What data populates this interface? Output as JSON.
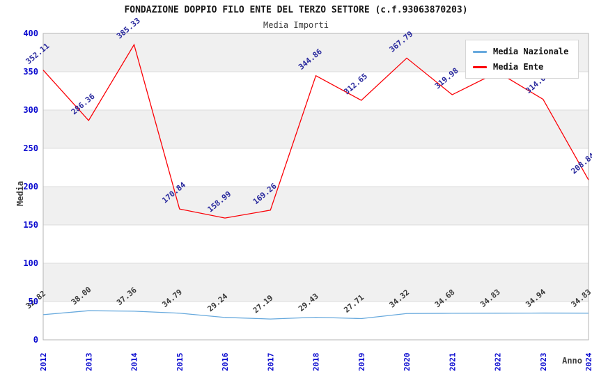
{
  "title": "FONDAZIONE DOPPIO FILO ENTE DEL TERZO SETTORE (c.f.93063870203)",
  "subtitle": "Media Importi",
  "legend": {
    "items": [
      {
        "label": "Media Nazionale",
        "color": "#67a9dd"
      },
      {
        "label": "Media Ente",
        "color": "#fb0006"
      }
    ]
  },
  "chart_data": {
    "type": "line",
    "title": "FONDAZIONE DOPPIO FILO ENTE DEL TERZO SETTORE (c.f.93063870203)",
    "subtitle": "Media Importi",
    "x": [
      2012,
      2013,
      2014,
      2015,
      2016,
      2017,
      2018,
      2019,
      2020,
      2021,
      2022,
      2023,
      2024
    ],
    "xlabel": "Anno",
    "ylabel": "Media",
    "ylim": [
      0,
      400
    ],
    "ytick_step": 50,
    "grid": "horizontal gridlines every 50 with alternating white/gray bands",
    "legend_position": "top-right",
    "series": [
      {
        "name": "Media Nazionale",
        "color": "#67a9dd",
        "values": [
          32.82,
          38.0,
          37.36,
          34.79,
          29.24,
          27.19,
          29.43,
          27.71,
          34.32,
          34.68,
          34.83,
          34.94,
          34.83
        ],
        "labels": [
          "32.82",
          "38.00",
          "37.36",
          "34.79",
          "29.24",
          "27.19",
          "29.43",
          "27.71",
          "34.32",
          "34.68",
          "34.83",
          "34.94",
          "34.83"
        ],
        "label_color": "#3a3a3a"
      },
      {
        "name": "Media Ente",
        "color": "#fb0006",
        "values": [
          352.11,
          286.36,
          385.33,
          170.84,
          158.99,
          169.26,
          344.86,
          312.65,
          367.79,
          319.98,
          349.5,
          314.03,
          208.84
        ],
        "labels": [
          "352.11",
          "286.36",
          "385.33",
          "170.84",
          "158.99",
          "169.26",
          "344.86",
          "312.65",
          "367.79",
          "319.98",
          "",
          "314.03",
          "208.84"
        ],
        "label_color": "#2a2a9e"
      }
    ],
    "colors": {
      "tick_label": "#0909cf",
      "axis_title": "#3f3f3f",
      "band_fill": "#f0f0f0",
      "grid_line": "#dcdcdc",
      "frame": "#b5b5b5"
    }
  }
}
